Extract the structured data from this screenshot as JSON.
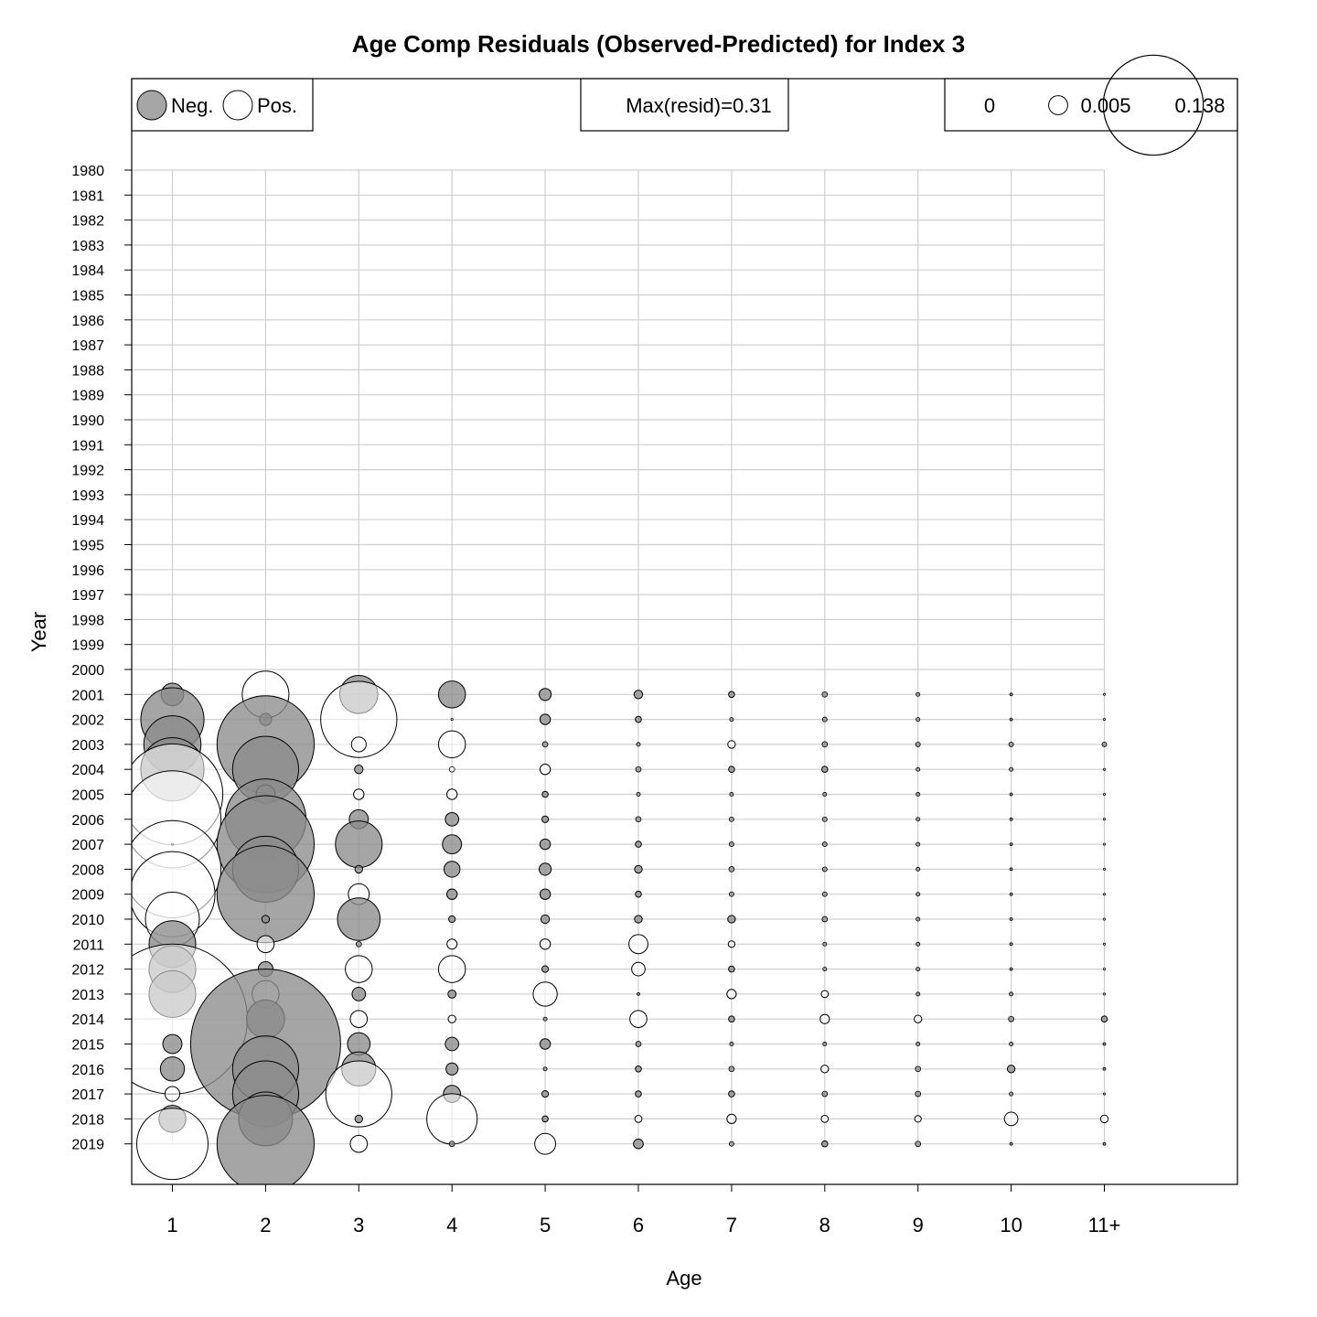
{
  "chart_data": {
    "type": "scatter",
    "subtype": "bubble",
    "title": "Age Comp Residuals (Observed-Predicted) for Index 3",
    "xlabel": "Age",
    "ylabel": "Year",
    "ages": [
      "1",
      "2",
      "3",
      "4",
      "5",
      "6",
      "7",
      "8",
      "9",
      "10",
      "11+"
    ],
    "years": [
      "1980",
      "1981",
      "1982",
      "1983",
      "1984",
      "1985",
      "1986",
      "1987",
      "1988",
      "1989",
      "1990",
      "1991",
      "1992",
      "1993",
      "1994",
      "1995",
      "1996",
      "1997",
      "1998",
      "1999",
      "2000",
      "2001",
      "2002",
      "2003",
      "2004",
      "2005",
      "2006",
      "2007",
      "2008",
      "2009",
      "2010",
      "2011",
      "2012",
      "2013",
      "2014",
      "2015",
      "2016",
      "2017",
      "2018",
      "2019"
    ],
    "legend_sign": {
      "neg_label": "Neg.",
      "pos_label": "Pos."
    },
    "legend_max": {
      "text": "Max(resid)=0.31"
    },
    "legend_size": {
      "values": [
        0,
        0.005,
        0.138
      ],
      "labels": [
        "0",
        "0.005",
        "0.138"
      ]
    },
    "colors": {
      "negative": "#8c8c8c",
      "positive": "#ffffff",
      "grid": "#cfcfcf",
      "stroke": "#000000"
    },
    "grid": true,
    "note": "values are residuals (observed - predicted); negative = gray filled, positive = open",
    "residuals": {
      "2001": [
        -0.007,
        0.03,
        -0.02,
        -0.01,
        -0.002,
        -0.001,
        -0.0005,
        -0.0004,
        -0.0002,
        -0.0001,
        0
      ],
      "2002": [
        -0.055,
        -0.002,
        0.08,
        0,
        -0.0015,
        -0.0005,
        -0.0002,
        -0.0003,
        -0.0002,
        -0.0001,
        0
      ],
      "2003": [
        -0.045,
        -0.13,
        0.003,
        0.01,
        -0.0004,
        -0.0002,
        0.0008,
        -0.0004,
        -0.0003,
        -0.0003,
        -0.0003
      ],
      "2004": [
        -0.055,
        -0.06,
        -0.001,
        0.0004,
        0.0015,
        -0.0004,
        -0.0005,
        -0.0005,
        -0.0002,
        -0.0002,
        0
      ],
      "2005": [
        0.14,
        -0.005,
        0.0015,
        0.0015,
        -0.0005,
        -0.0002,
        -0.0002,
        -0.0002,
        -0.0002,
        -0.0001,
        0
      ],
      "2006": [
        0.13,
        -0.09,
        -0.005,
        -0.0025,
        -0.0006,
        -0.0004,
        -0.0003,
        -0.0003,
        -0.0002,
        -0.0001,
        0
      ],
      "2007": [
        0,
        -0.13,
        -0.03,
        -0.005,
        -0.0015,
        -0.0005,
        -0.0003,
        -0.0003,
        -0.0002,
        -0.0001,
        0
      ],
      "2008": [
        0.13,
        -0.06,
        -0.0008,
        -0.0035,
        -0.002,
        -0.0008,
        -0.0004,
        -0.0003,
        -0.0002,
        -0.0001,
        0
      ],
      "2009": [
        0.1,
        -0.13,
        0.006,
        -0.0015,
        -0.0015,
        -0.0005,
        -0.0003,
        -0.0003,
        -0.0002,
        -0.0001,
        0
      ],
      "2010": [
        0.04,
        -0.0008,
        -0.025,
        -0.0006,
        -0.001,
        -0.0008,
        -0.0008,
        -0.0004,
        -0.0002,
        -0.0001,
        0
      ],
      "2011": [
        -0.03,
        0.004,
        -0.0004,
        0.0014,
        0.0015,
        0.005,
        0.0006,
        -0.0002,
        -0.0002,
        -0.0001,
        0
      ],
      "2012": [
        -0.03,
        -0.003,
        0.01,
        0.01,
        -0.0006,
        0.0025,
        -0.0005,
        -0.0002,
        -0.0002,
        -0.0001,
        0
      ],
      "2013": [
        -0.03,
        0.01,
        -0.0025,
        -0.0009,
        0.008,
        -0.0001,
        0.0012,
        0.0007,
        -0.0002,
        -0.0002,
        0
      ],
      "2014": [
        0.31,
        -0.02,
        0.004,
        0.0008,
        -0.0002,
        0.004,
        -0.0005,
        0.0012,
        0.0008,
        -0.0004,
        -0.0005
      ],
      "2015": [
        -0.005,
        -0.31,
        -0.007,
        -0.0025,
        -0.0015,
        -0.0004,
        -0.0002,
        -0.0002,
        -0.0002,
        -0.0002,
        -0.0001
      ],
      "2016": [
        -0.008,
        -0.06,
        -0.016,
        -0.002,
        -0.0002,
        -0.0005,
        -0.0004,
        0.0008,
        -0.0004,
        -0.0008,
        -0.0001
      ],
      "2017": [
        0.003,
        -0.06,
        0.06,
        -0.004,
        -0.0006,
        -0.0005,
        -0.0005,
        -0.0004,
        -0.0004,
        -0.0002,
        0
      ],
      "2018": [
        -0.01,
        -0.04,
        -0.0008,
        0.035,
        -0.0005,
        0.0007,
        0.0012,
        0.0007,
        0.0006,
        0.0025,
        0.0008
      ],
      "2019": [
        0.07,
        -0.13,
        0.004,
        -0.0004,
        0.006,
        -0.0013,
        -0.0003,
        -0.0005,
        -0.0004,
        -0.0001,
        -0.0001
      ]
    }
  }
}
